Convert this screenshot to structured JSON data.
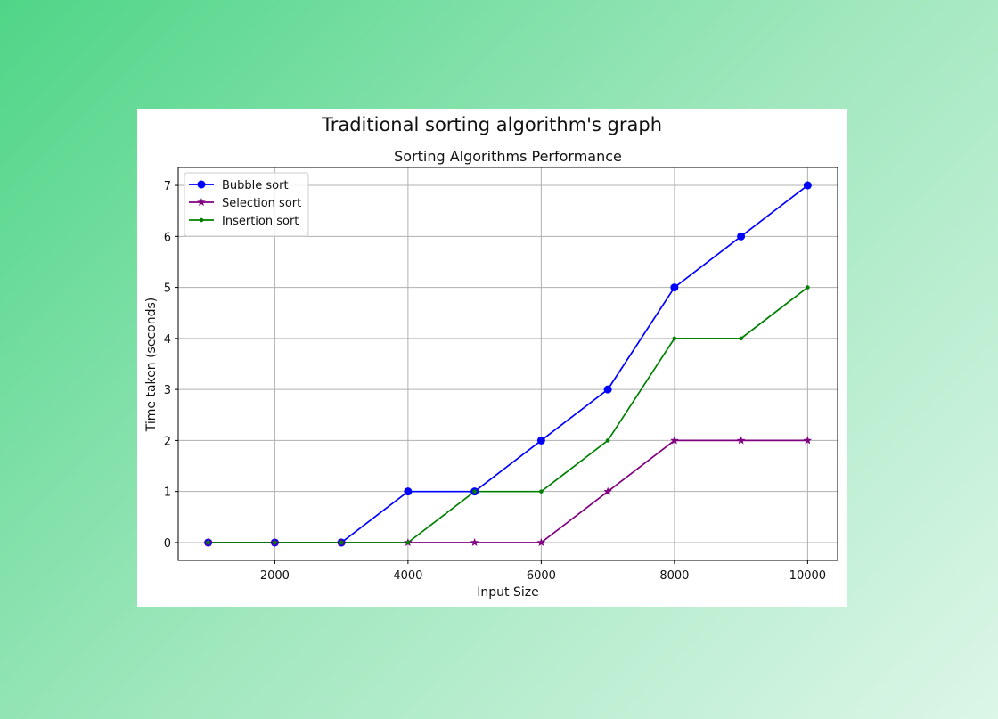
{
  "figure_title": "Traditional sorting algorithm's graph",
  "chart_data": {
    "type": "line",
    "title": "Sorting Algorithms Performance",
    "xlabel": "Input Size",
    "ylabel": "Time taken (seconds)",
    "x": [
      1000,
      2000,
      3000,
      4000,
      5000,
      6000,
      7000,
      8000,
      9000,
      10000
    ],
    "xticks": [
      2000,
      4000,
      6000,
      8000,
      10000
    ],
    "yticks": [
      0,
      1,
      2,
      3,
      4,
      5,
      6,
      7
    ],
    "xlim": [
      550,
      10450
    ],
    "ylim": [
      -0.35,
      7.35
    ],
    "grid": true,
    "legend_position": "upper left",
    "series": [
      {
        "name": "Bubble sort",
        "color": "#0000ff",
        "marker": "circle",
        "values": [
          0,
          0,
          0,
          1,
          1,
          2,
          3,
          5,
          6,
          7
        ]
      },
      {
        "name": "Selection sort",
        "color": "#800080",
        "marker": "star",
        "values": [
          0,
          0,
          0,
          0,
          0,
          0,
          1,
          2,
          2,
          2
        ]
      },
      {
        "name": "Insertion sort",
        "color": "#008000",
        "marker": "point",
        "values": [
          0,
          0,
          0,
          0,
          1,
          1,
          2,
          4,
          4,
          5
        ]
      }
    ]
  }
}
